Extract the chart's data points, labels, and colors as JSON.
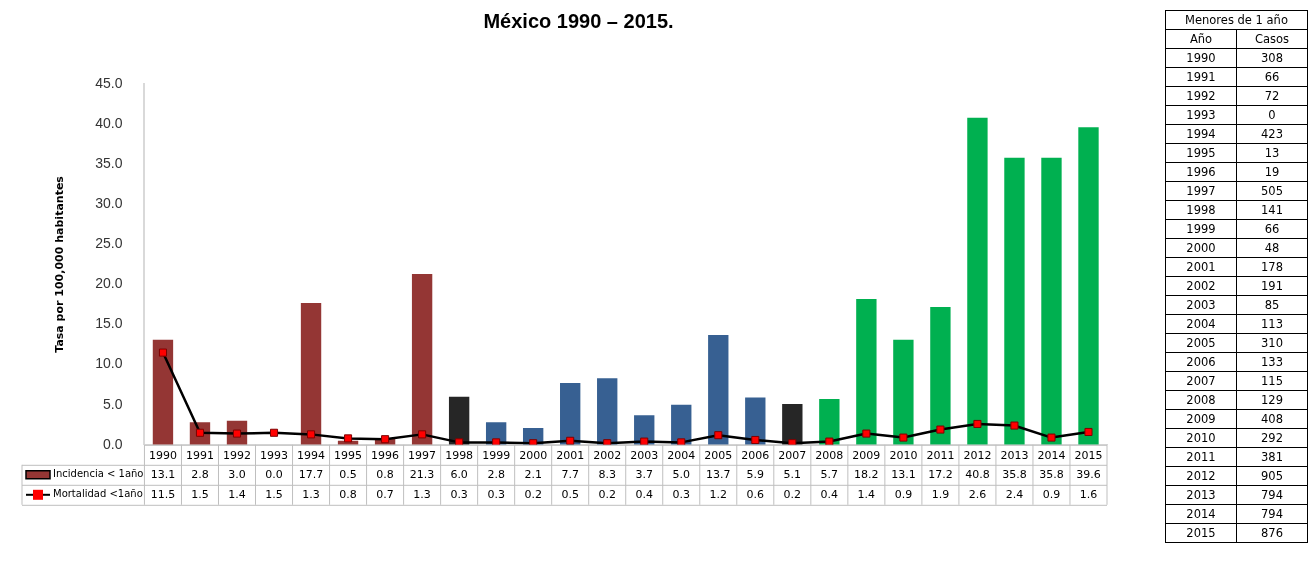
{
  "chart_data": {
    "type": "bar",
    "title": "México 1990 – 2015.",
    "ylabel": "Tasa por 100,000 habitantes",
    "categories": [
      "1990",
      "1991",
      "1992",
      "1993",
      "1994",
      "1995",
      "1996",
      "1997",
      "1998",
      "1999",
      "2000",
      "2001",
      "2002",
      "2003",
      "2004",
      "2005",
      "2006",
      "2007",
      "2008",
      "2009",
      "2010",
      "2011",
      "2012",
      "2013",
      "2014",
      "2015"
    ],
    "series": [
      {
        "name": "Incidencia < 1año",
        "color": "#943634",
        "colors": [
          "#943634",
          "#943634",
          "#943634",
          "#943634",
          "#943634",
          "#943634",
          "#943634",
          "#943634",
          "#262626",
          "#376092",
          "#376092",
          "#376092",
          "#376092",
          "#376092",
          "#376092",
          "#376092",
          "#376092",
          "#262626",
          "#00b050",
          "#00b050",
          "#00b050",
          "#00b050",
          "#00b050",
          "#00b050",
          "#00b050",
          "#00b050"
        ],
        "values": [
          13.1,
          2.8,
          3.0,
          0.0,
          17.7,
          0.5,
          0.8,
          21.3,
          6.0,
          2.8,
          2.1,
          7.7,
          8.3,
          3.7,
          5.0,
          13.7,
          5.9,
          5.1,
          5.7,
          18.2,
          13.1,
          17.2,
          40.8,
          35.8,
          35.8,
          39.6
        ],
        "value_labels": [
          "13.1",
          "2.8",
          "3.0",
          "0.0",
          "17.7",
          "0.5",
          "0.8",
          "21.3",
          "6.0",
          "2.8",
          "2.1",
          "7.7",
          "8.3",
          "3.7",
          "5.0",
          "13.7",
          "5.9",
          "5.1",
          "5.7",
          "18.2",
          "13.1",
          "17.2",
          "40.8",
          "35.8",
          "35.8",
          "39.6"
        ]
      },
      {
        "name": "Mortalidad <1año",
        "type": "line",
        "color": "#ff0000",
        "values": [
          11.5,
          1.5,
          1.4,
          1.5,
          1.3,
          0.8,
          0.7,
          1.3,
          0.3,
          0.3,
          0.2,
          0.5,
          0.2,
          0.4,
          0.3,
          1.2,
          0.6,
          0.2,
          0.4,
          1.4,
          0.9,
          1.9,
          2.6,
          2.4,
          0.9,
          1.6
        ],
        "value_labels": [
          "11.5",
          "1.5",
          "1.4",
          "1.5",
          "1.3",
          "0.8",
          "0.7",
          "1.3",
          "0.3",
          "0.3",
          "0.2",
          "0.5",
          "0.2",
          "0.4",
          "0.3",
          "1.2",
          "0.6",
          "0.2",
          "0.4",
          "1.4",
          "0.9",
          "1.9",
          "2.6",
          "2.4",
          "0.9",
          "1.6"
        ]
      }
    ],
    "ylim": [
      0,
      45
    ],
    "yticks": [
      {
        "value": 0,
        "label": "0.0"
      },
      {
        "value": 5,
        "label": "5.0"
      },
      {
        "value": 10,
        "label": "10.0"
      },
      {
        "value": 15,
        "label": "15.0"
      },
      {
        "value": 20,
        "label": "20.0"
      },
      {
        "value": 25,
        "label": "25.0"
      },
      {
        "value": 30,
        "label": "30.0"
      },
      {
        "value": 35,
        "label": "35.0"
      },
      {
        "value": 40,
        "label": "40.0"
      },
      {
        "value": 45,
        "label": "45.0"
      }
    ],
    "marker": "square",
    "line_style": "solid",
    "legend": "bottom left",
    "annotations": [
      "Menores de 1 año",
      "Año",
      "Casos",
      "1990",
      "308",
      "1991",
      "66",
      "1992",
      "72",
      "1993",
      "0",
      "1994",
      "423",
      "1995",
      "13",
      "1996",
      "19",
      "1997",
      "505",
      "1998",
      "141",
      "1999",
      "66",
      "2000",
      "48",
      "2001",
      "178",
      "2002",
      "191",
      "2003",
      "85",
      "2004",
      "113",
      "2005",
      "310",
      "2006",
      "133",
      "2007",
      "115",
      "2008",
      "129",
      "2009",
      "408",
      "2010",
      "292",
      "2011",
      "381",
      "2012",
      "905",
      "2013",
      "794",
      "2014",
      "794",
      "2015",
      "876"
    ]
  }
}
